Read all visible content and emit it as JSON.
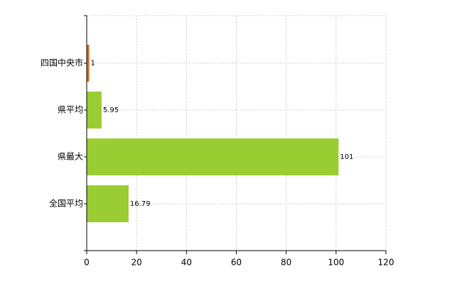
{
  "chart_data": {
    "type": "barh",
    "categories": [
      "四国中央市",
      "県平均",
      "県最大",
      "全国平均"
    ],
    "values": [
      1,
      5.95,
      101,
      16.79
    ],
    "colors": [
      "#d2691e",
      "#9acd32",
      "#9acd32",
      "#9acd32"
    ],
    "xlim": [
      0,
      120
    ],
    "xticks": [
      0,
      20,
      40,
      60,
      80,
      100,
      120
    ],
    "grid": true
  }
}
